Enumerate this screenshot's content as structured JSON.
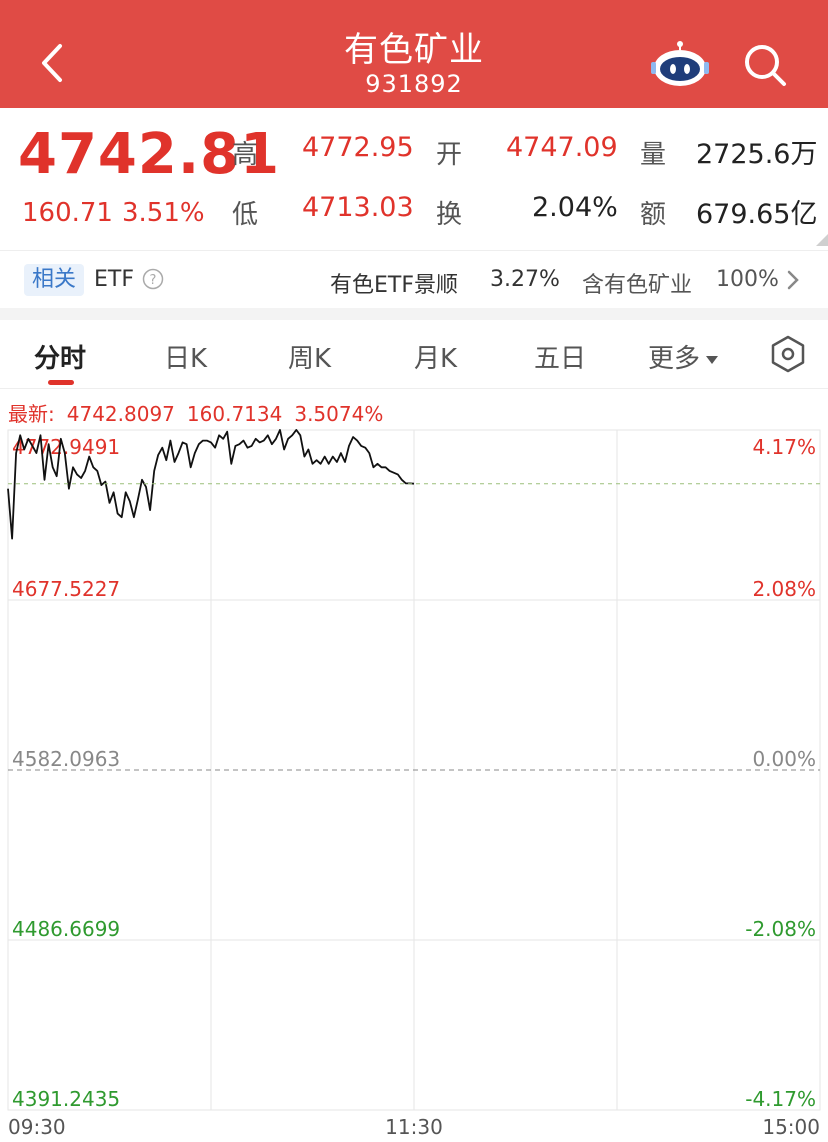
{
  "header": {
    "title": "有色矿业",
    "code": "931892",
    "bg": "#e04b45"
  },
  "quote": {
    "price": "4742.81",
    "change": "160.71",
    "change_pct": "3.51%",
    "labels": {
      "high": "高",
      "low": "低",
      "open": "开",
      "turnover": "换",
      "volume": "量",
      "amount": "额"
    },
    "high": "4772.95",
    "low": "4713.03",
    "open": "4747.09",
    "turnover": "2.04%",
    "volume": "2725.6万",
    "amount": "679.65亿"
  },
  "related": {
    "tag": "相关",
    "etf": "ETF",
    "fund_name": "有色ETF景顺",
    "fund_pct": "3.27%",
    "holding_label": "含有色矿业",
    "holding_pct": "100%"
  },
  "tabs": [
    "分时",
    "日K",
    "周K",
    "月K",
    "五日",
    "更多"
  ],
  "latest": {
    "label": "最新:",
    "price": "4742.8097",
    "change": "160.7134",
    "pct": "3.5074%"
  },
  "chart_data": {
    "type": "line",
    "y_labels": [
      "4772.9491",
      "4677.5227",
      "4582.0963",
      "4486.6699",
      "4391.2435"
    ],
    "y_pct_labels": [
      "4.17%",
      "2.08%",
      "0.00%",
      "-2.08%",
      "-4.17%"
    ],
    "x_labels": [
      "09:30",
      "11:30",
      "15:00"
    ],
    "prev_close": 4582.0963,
    "ylim": [
      4391.2435,
      4772.9491
    ],
    "x_minutes_total": 240,
    "series": [
      {
        "values": [
          4740,
          4712,
          4760,
          4770,
          4762,
          4768,
          4764,
          4760,
          4770,
          4745,
          4765,
          4752,
          4747,
          4768,
          4760,
          4740,
          4752,
          4748,
          4746,
          4750,
          4758,
          4752,
          4750,
          4742,
          4744,
          4732,
          4738,
          4726,
          4724,
          4738,
          4733,
          4724,
          4734,
          4745,
          4741,
          4728,
          4750,
          4759,
          4763,
          4756,
          4767,
          4755,
          4760,
          4766,
          4765,
          4752,
          4760,
          4765,
          4767,
          4767,
          4766,
          4763,
          4770,
          4768,
          4772,
          4754,
          4764,
          4765,
          4767,
          4763,
          4764,
          4768,
          4766,
          4767,
          4770,
          4765,
          4768,
          4773,
          4762,
          4768,
          4770,
          4773,
          4770,
          4758,
          4762,
          4754,
          4756,
          4754,
          4758,
          4754,
          4758,
          4755,
          4760,
          4755,
          4764,
          4769,
          4767,
          4764,
          4763,
          4760,
          4752,
          4754,
          4752,
          4752,
          4750,
          4749,
          4748,
          4745,
          4743,
          4743,
          4742.81
        ]
      }
    ]
  },
  "colors": {
    "up": "#e0332b",
    "down": "#2f9a2f",
    "grid": "#e6e6e6",
    "line": "#111111"
  },
  "icons": {
    "back": "chevron-left-icon",
    "robot": "robot-icon",
    "search": "search-icon",
    "help": "question-circle-icon",
    "arrow": "chevron-right-icon",
    "settings": "hexagon-settings-icon"
  }
}
